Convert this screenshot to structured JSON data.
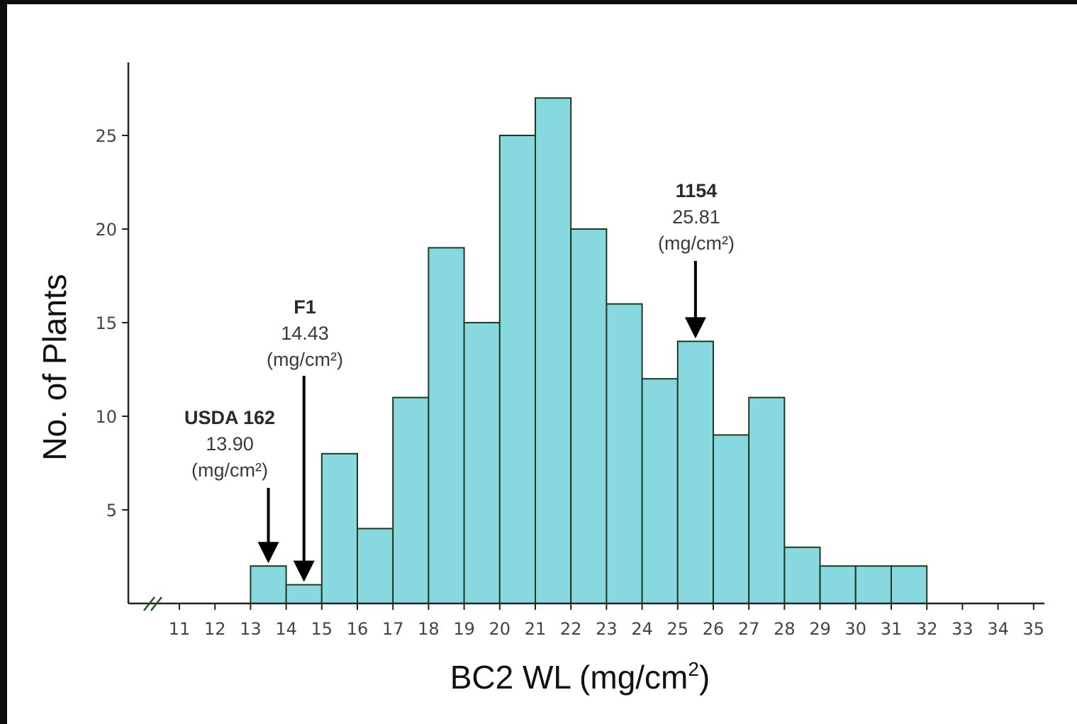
{
  "chart_data": {
    "type": "bar",
    "subtype": "histogram",
    "xlabel": "BC2 WL (mg/cm",
    "xlabel_superscript": "2",
    "xlabel_close": ")",
    "ylabel": "No. of Plants",
    "x_ticks": [
      "11",
      "12",
      "13",
      "14",
      "15",
      "16",
      "17",
      "18",
      "19",
      "20",
      "21",
      "22",
      "23",
      "24",
      "25",
      "26",
      "27",
      "28",
      "29",
      "30",
      "31",
      "32",
      "33",
      "34",
      "35"
    ],
    "y_ticks": [
      "5",
      "10",
      "15",
      "20",
      "25"
    ],
    "xlim": [
      10.4,
      35.2
    ],
    "ylim": [
      0,
      29
    ],
    "axis_break": true,
    "bins": [
      {
        "start": 13,
        "end": 14,
        "count": 2
      },
      {
        "start": 14,
        "end": 15,
        "count": 1
      },
      {
        "start": 15,
        "end": 16,
        "count": 8
      },
      {
        "start": 16,
        "end": 17,
        "count": 4
      },
      {
        "start": 17,
        "end": 18,
        "count": 11
      },
      {
        "start": 18,
        "end": 19,
        "count": 19
      },
      {
        "start": 19,
        "end": 20,
        "count": 15
      },
      {
        "start": 20,
        "end": 21,
        "count": 25
      },
      {
        "start": 21,
        "end": 22,
        "count": 27
      },
      {
        "start": 22,
        "end": 23,
        "count": 20
      },
      {
        "start": 23,
        "end": 24,
        "count": 16
      },
      {
        "start": 24,
        "end": 25,
        "count": 12
      },
      {
        "start": 25,
        "end": 26,
        "count": 14
      },
      {
        "start": 26,
        "end": 27,
        "count": 9
      },
      {
        "start": 27,
        "end": 28,
        "count": 11
      },
      {
        "start": 28,
        "end": 29,
        "count": 3
      },
      {
        "start": 29,
        "end": 30,
        "count": 2
      },
      {
        "start": 30,
        "end": 31,
        "count": 2
      },
      {
        "start": 31,
        "end": 32,
        "count": 2
      }
    ],
    "annotations": [
      {
        "label": "USDA 162",
        "value": "13.90",
        "unit": "(mg/cm²)",
        "x": 13.5,
        "arrow_tip_y": 2
      },
      {
        "label": "F1",
        "value": "14.43",
        "unit": "(mg/cm²)",
        "x": 14.5,
        "arrow_tip_y": 1
      },
      {
        "label": "1154",
        "value": "25.81",
        "unit": "(mg/cm²)",
        "x": 25.5,
        "arrow_tip_y": 14
      }
    ],
    "grid": false,
    "legend": "none"
  },
  "colors": {
    "bar_fill": "#88d8e0",
    "bar_stroke": "#1e3a1e",
    "axis": "#222222",
    "axis_break": "#1e5a1e",
    "frame": "#0d0d0d"
  }
}
